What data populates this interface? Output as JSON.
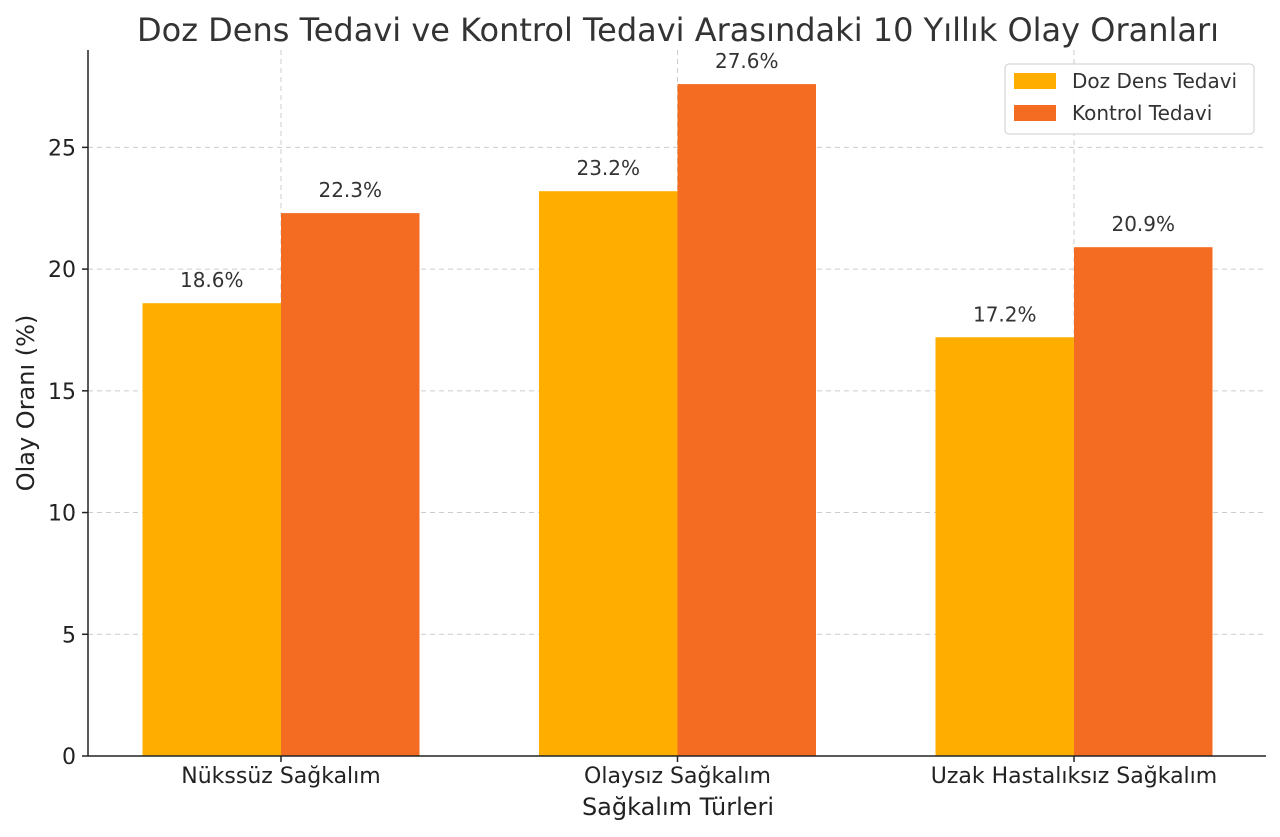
{
  "chart_data": {
    "type": "bar",
    "title": "Doz Dens Tedavi ve Kontrol Tedavi Arasındaki 10 Yıllık Olay Oranları",
    "xlabel": "Sağkalım Türleri",
    "ylabel": "Olay Oranı (%)",
    "categories": [
      "Nükssüz Sağkalım",
      "Olaysız Sağkalım",
      "Uzak Hastalıksız Sağkalım"
    ],
    "series": [
      {
        "name": "Doz Dens Tedavi",
        "values": [
          18.6,
          23.2,
          17.2
        ],
        "labels": [
          "18.6%",
          "23.2%",
          "17.2%"
        ],
        "color": "#FFAE00"
      },
      {
        "name": "Kontrol Tedavi",
        "values": [
          22.3,
          27.6,
          20.9
        ],
        "labels": [
          "22.3%",
          "27.6%",
          "20.9%"
        ],
        "color": "#F46B22"
      }
    ],
    "ylim": [
      0,
      29
    ],
    "yticks": [
      0,
      5,
      10,
      15,
      20,
      25
    ],
    "ytick_labels": [
      "0",
      "5",
      "10",
      "15",
      "20",
      "25"
    ],
    "grid": true,
    "legend_position": "top-right"
  }
}
